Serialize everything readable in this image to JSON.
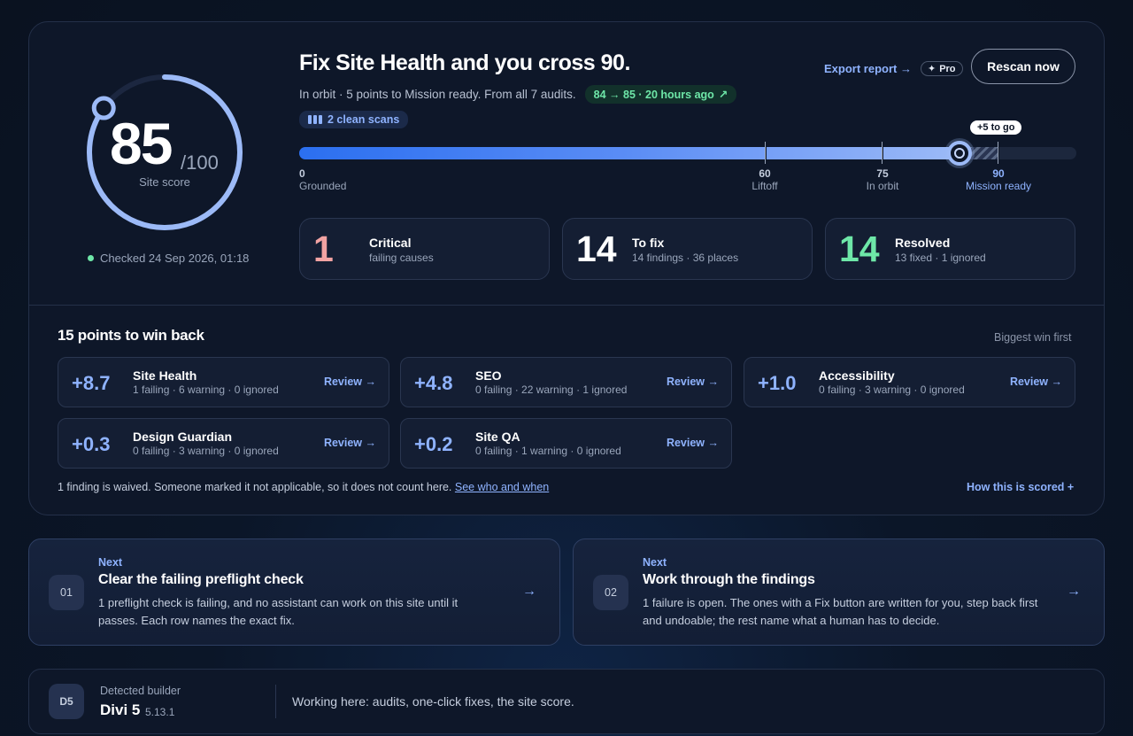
{
  "score": {
    "value": "85",
    "max": "/100",
    "label": "Site score",
    "fraction": 0.85,
    "checked": "Checked 24 Sep 2026, 01:18"
  },
  "header": {
    "headline": "Fix Site Health and you cross 90.",
    "subline": "In orbit · 5 points to Mission ready. From all 7 audits.",
    "trend": "84 → 85 · 20 hours ago",
    "scans": "2 clean scans",
    "export_label": "Export report →",
    "pro_label": "Pro",
    "rescan_label": "Rescan now"
  },
  "progress": {
    "value": 85,
    "goal": 90,
    "to_go": "+5 to go",
    "marks": [
      {
        "value": "0",
        "label": "Grounded"
      },
      {
        "value": "60",
        "label": "Liftoff"
      },
      {
        "value": "75",
        "label": "In orbit"
      },
      {
        "value": "90",
        "label": "Mission ready"
      }
    ]
  },
  "stats": [
    {
      "number": "1",
      "title": "Critical",
      "sub": "failing causes",
      "color": "#f2a3a3"
    },
    {
      "number": "14",
      "title": "To fix",
      "sub": "14 findings · 36 places",
      "color": "#ffffff"
    },
    {
      "number": "14",
      "title": "Resolved",
      "sub": "13 fixed · 1 ignored",
      "color": "#6ee7a8"
    }
  ],
  "winback": {
    "title": "15 points to win back",
    "sort": "Biggest win first",
    "review_label": "Review →",
    "cards": [
      {
        "points": "+8.7",
        "name": "Site Health",
        "stats": "1 failing · 6 warning · 0 ignored"
      },
      {
        "points": "+4.8",
        "name": "SEO",
        "stats": "0 failing · 22 warning · 1 ignored"
      },
      {
        "points": "+1.0",
        "name": "Accessibility",
        "stats": "0 failing · 3 warning · 0 ignored"
      },
      {
        "points": "+0.3",
        "name": "Design Guardian",
        "stats": "0 failing · 3 warning · 0 ignored"
      },
      {
        "points": "+0.2",
        "name": "Site QA",
        "stats": "0 failing · 1 warning · 0 ignored"
      }
    ],
    "waived_text": "1 finding is waived. Someone marked it not applicable, so it does not count here.",
    "waived_link": "See who and when",
    "scored_link": "How this is scored +"
  },
  "next_steps": [
    {
      "number": "01",
      "label": "Next",
      "title": "Clear the failing preflight check",
      "desc": "1 preflight check is failing, and no assistant can work on this site until it passes. Each row names the exact fix."
    },
    {
      "number": "02",
      "label": "Next",
      "title": "Work through the findings",
      "desc": "1 failure is open. The ones with a Fix button are written for you, step back first and undoable; the rest name what a human has to decide."
    }
  ],
  "builder": {
    "badge": "D5",
    "label": "Detected builder",
    "name": "Divi 5",
    "version": "5.13.1",
    "working": "Working here: audits, one-click fixes, the site score."
  }
}
